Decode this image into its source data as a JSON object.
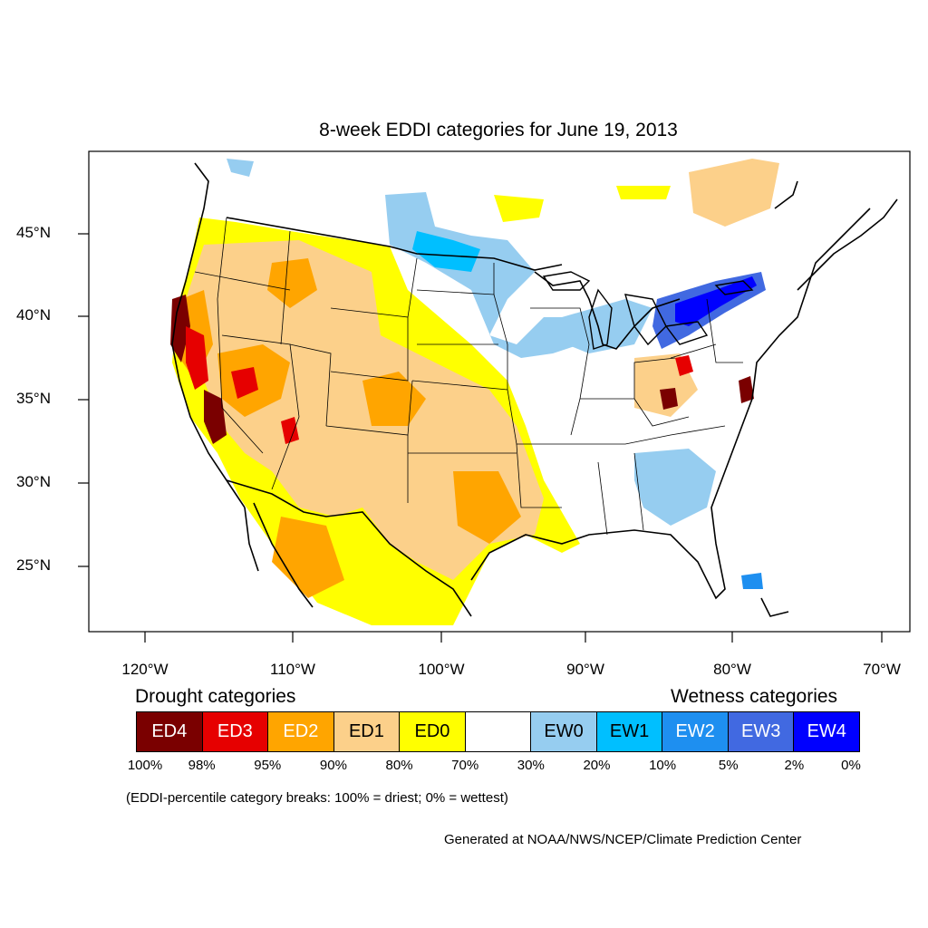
{
  "title": "8-week EDDI categories for June 19, 2013",
  "lat_labels": [
    "45°N",
    "40°N",
    "35°N",
    "30°N",
    "25°N"
  ],
  "lon_labels": [
    "120°W",
    "110°W",
    "100°W",
    "90°W",
    "80°W",
    "70°W"
  ],
  "drought_heading": "Drought categories",
  "wetness_heading": "Wetness categories",
  "legend": [
    {
      "label": "ED4",
      "color": "#7a0000",
      "text_color": "#ffffff"
    },
    {
      "label": "ED3",
      "color": "#e60000",
      "text_color": "#ffffff"
    },
    {
      "label": "ED2",
      "color": "#ffa500",
      "text_color": "#ffffff"
    },
    {
      "label": "ED1",
      "color": "#fcd08a",
      "text_color": "#000000"
    },
    {
      "label": "ED0",
      "color": "#ffff00",
      "text_color": "#000000"
    },
    {
      "label": "",
      "color": "#ffffff",
      "text_color": "#000000"
    },
    {
      "label": "EW0",
      "color": "#96cdf0",
      "text_color": "#000000"
    },
    {
      "label": "EW1",
      "color": "#00bfff",
      "text_color": "#000000"
    },
    {
      "label": "EW2",
      "color": "#1e8ff0",
      "text_color": "#ffffff"
    },
    {
      "label": "EW3",
      "color": "#4169e1",
      "text_color": "#ffffff"
    },
    {
      "label": "EW4",
      "color": "#0000ff",
      "text_color": "#ffffff"
    }
  ],
  "percent_breaks": [
    "100%",
    "98%",
    "95%",
    "90%",
    "80%",
    "70%",
    "30%",
    "20%",
    "10%",
    "5%",
    "2%",
    "0%"
  ],
  "note": "(EDDI-percentile category breaks: 100% = driest; 0% = wettest)",
  "credit": "Generated at NOAA/NWS/NCEP/Climate Prediction Center"
}
